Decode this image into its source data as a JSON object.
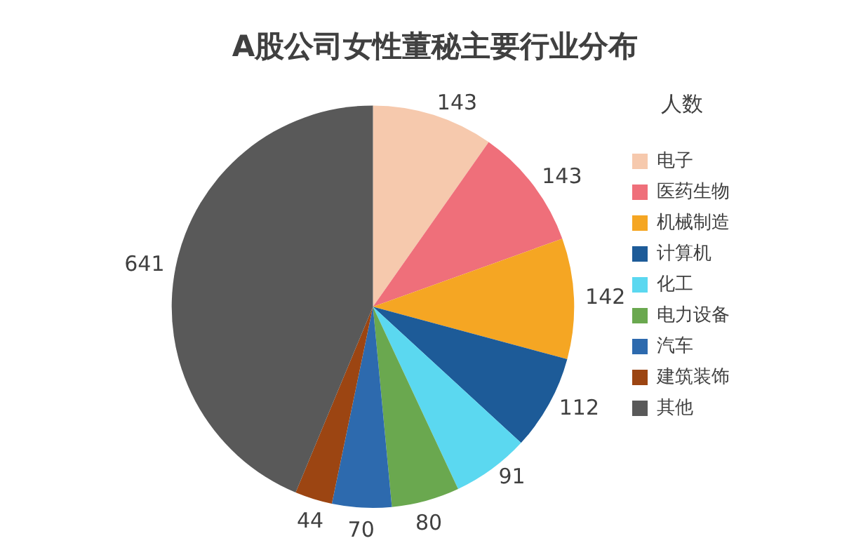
{
  "chart_data": {
    "type": "pie",
    "title": "A股公司女性董秘主要行业分布",
    "legend_title": "人数",
    "legend": "right",
    "data_labels": true,
    "categories": [
      "电子",
      "医药生物",
      "机械制造",
      "计算机",
      "化工",
      "电力设备",
      "汽车",
      "建筑装饰",
      "其他"
    ],
    "values": [
      143,
      143,
      142,
      112,
      91,
      80,
      70,
      44,
      641
    ],
    "colors": [
      "#f6c9ad",
      "#ef6f7a",
      "#f5a623",
      "#1d5b98",
      "#5bd8f0",
      "#6aa84f",
      "#2d6aae",
      "#9c4512",
      "#595959"
    ]
  }
}
